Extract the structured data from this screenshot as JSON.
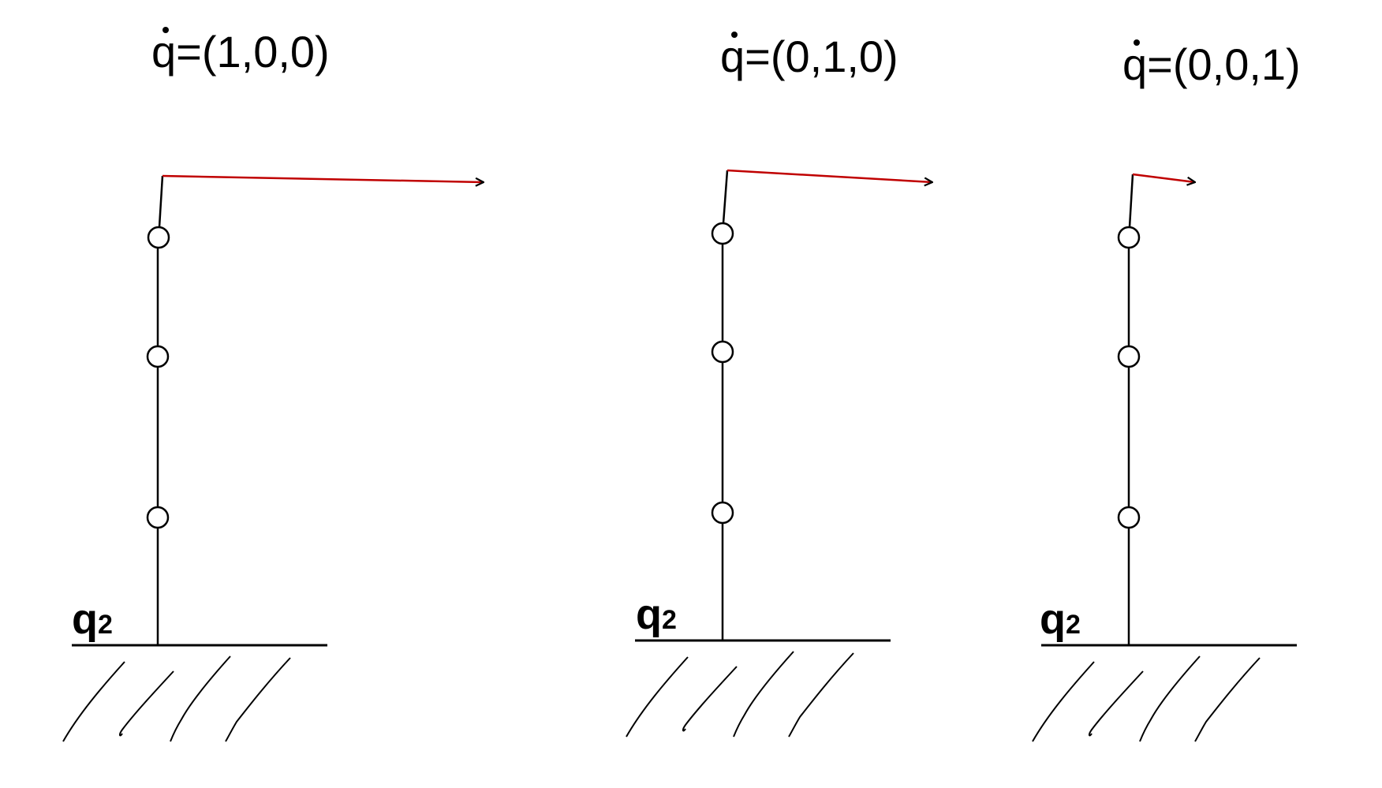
{
  "colors": {
    "stroke": "#000000",
    "arrow": "#c00000",
    "background": "#ffffff"
  },
  "panels": [
    {
      "title_var": "q",
      "title_rest": "=(1,0,0)",
      "joint_var": "q",
      "joint_sub": "2"
    },
    {
      "title_var": "q",
      "title_rest": "=(0,1,0)",
      "joint_var": "q",
      "joint_sub": "2"
    },
    {
      "title_var": "q",
      "title_rest": "=(0,0,1)",
      "joint_var": "q",
      "joint_sub": "2"
    }
  ]
}
